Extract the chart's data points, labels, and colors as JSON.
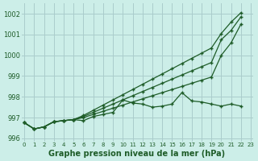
{
  "xlabel": "Graphe pression niveau de la mer (hPa)",
  "xlim": [
    -0.3,
    23.2
  ],
  "ylim": [
    995.85,
    1002.5
  ],
  "yticks": [
    996,
    997,
    998,
    999,
    1000,
    1001,
    1002
  ],
  "xticks": [
    0,
    1,
    2,
    3,
    4,
    5,
    6,
    7,
    8,
    9,
    10,
    11,
    12,
    13,
    14,
    15,
    16,
    17,
    18,
    19,
    20,
    21,
    22,
    23
  ],
  "bg_color": "#cceee8",
  "grid_color": "#aacccc",
  "line_color": "#1e5c28",
  "hours": [
    0,
    1,
    2,
    3,
    4,
    5,
    6,
    7,
    8,
    9,
    10,
    11,
    12,
    13,
    14,
    15,
    16,
    17,
    18,
    19,
    20,
    21,
    22
  ],
  "line_wavy": [
    996.75,
    996.45,
    996.55,
    996.8,
    996.85,
    996.9,
    996.85,
    997.05,
    997.15,
    997.25,
    997.85,
    997.7,
    997.65,
    997.5,
    997.55,
    997.65,
    998.2,
    997.8,
    997.75,
    997.65,
    997.55,
    997.65,
    997.55
  ],
  "line_trend_top": [
    996.75,
    996.45,
    996.55,
    996.8,
    996.85,
    996.9,
    997.1,
    997.35,
    997.6,
    997.85,
    998.1,
    998.35,
    998.6,
    998.85,
    999.1,
    999.35,
    999.6,
    999.85,
    1000.1,
    1000.35,
    1001.05,
    1001.6,
    1002.05
  ],
  "line_trend_mid": [
    996.75,
    996.45,
    996.55,
    996.8,
    996.85,
    996.9,
    997.05,
    997.25,
    997.45,
    997.65,
    997.85,
    998.05,
    998.25,
    998.45,
    998.65,
    998.85,
    999.05,
    999.25,
    999.45,
    999.65,
    1000.75,
    1001.2,
    1001.85
  ],
  "line_trend_low": [
    996.75,
    996.45,
    996.55,
    996.8,
    996.85,
    996.9,
    997.0,
    997.15,
    997.3,
    997.45,
    997.6,
    997.75,
    997.9,
    998.05,
    998.2,
    998.35,
    998.5,
    998.65,
    998.8,
    998.95,
    1000.0,
    1000.6,
    1001.5
  ]
}
